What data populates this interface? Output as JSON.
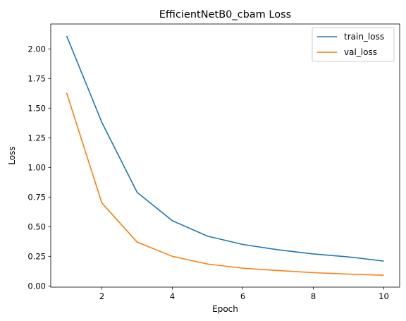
{
  "chart_data": {
    "type": "line",
    "title": "EfficientNetB0_cbam Loss",
    "xlabel": "Epoch",
    "ylabel": "Loss",
    "x": [
      1,
      2,
      3,
      4,
      5,
      6,
      7,
      8,
      9,
      10
    ],
    "xlim": [
      0.55,
      10.45
    ],
    "ylim": [
      -0.01,
      2.21
    ],
    "xticks": [
      2,
      4,
      6,
      8,
      10
    ],
    "xtick_labels": [
      "2",
      "4",
      "6",
      "8",
      "10"
    ],
    "yticks": [
      0.0,
      0.25,
      0.5,
      0.75,
      1.0,
      1.25,
      1.5,
      1.75,
      2.0
    ],
    "ytick_labels": [
      "0.00",
      "0.25",
      "0.50",
      "0.75",
      "1.00",
      "1.25",
      "1.50",
      "1.75",
      "2.00"
    ],
    "grid": false,
    "legend_position": "top-right",
    "series": [
      {
        "name": "train_loss",
        "color": "#1f77b4",
        "values": [
          2.11,
          1.38,
          0.79,
          0.55,
          0.42,
          0.35,
          0.305,
          0.27,
          0.245,
          0.21
        ]
      },
      {
        "name": "val_loss",
        "color": "#ff7f0e",
        "values": [
          1.63,
          0.7,
          0.37,
          0.25,
          0.185,
          0.15,
          0.13,
          0.112,
          0.1,
          0.09
        ]
      }
    ]
  }
}
